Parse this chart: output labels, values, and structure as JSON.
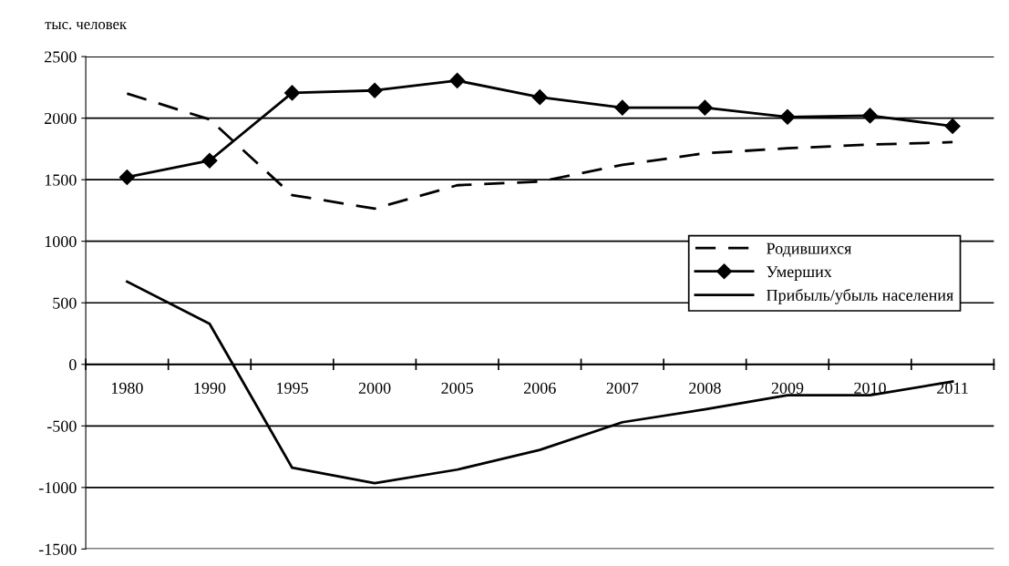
{
  "chart_data": {
    "type": "line",
    "ylabel": "тыс. человек",
    "categories": [
      "1980",
      "1990",
      "1995",
      "2000",
      "2005",
      "2006",
      "2007",
      "2008",
      "2009",
      "2010",
      "2011"
    ],
    "series": [
      {
        "name": "Родившихся",
        "color": "#000000",
        "line_style": "dashed",
        "marker": "none",
        "values": [
          2200,
          1990,
          1375,
          1265,
          1455,
          1485,
          1620,
          1715,
          1755,
          1785,
          1805
        ]
      },
      {
        "name": "Умерших",
        "color": "#000000",
        "line_style": "solid",
        "marker": "diamond",
        "values": [
          1520,
          1655,
          2205,
          2225,
          2305,
          2170,
          2085,
          2085,
          2010,
          2020,
          1935
        ]
      },
      {
        "name": "Прибыль/убыль населения",
        "color": "#000000",
        "line_style": "solid",
        "marker": "none",
        "values": [
          672,
          330,
          -840,
          -965,
          -855,
          -695,
          -470,
          -365,
          -250,
          -250,
          -140
        ]
      }
    ],
    "ylim": [
      -1500,
      2500
    ],
    "yticks": [
      -1500,
      -1000,
      -500,
      0,
      500,
      1000,
      1500,
      2000,
      2500
    ],
    "grid": "y",
    "legend": "right"
  }
}
